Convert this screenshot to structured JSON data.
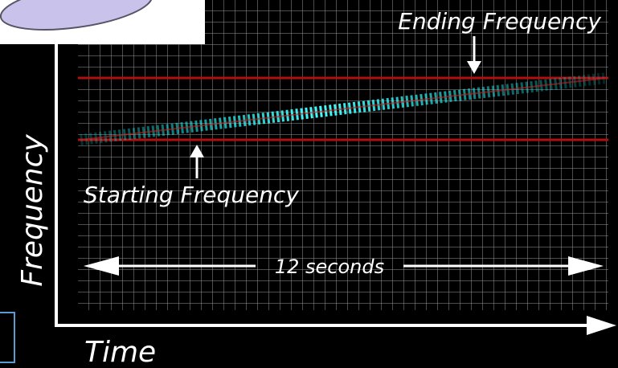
{
  "labels": {
    "ending": "Ending Frequency",
    "starting": "Starting Frequency",
    "duration": "12 seconds",
    "y_axis": "Frequency",
    "x_axis": "Time"
  }
}
